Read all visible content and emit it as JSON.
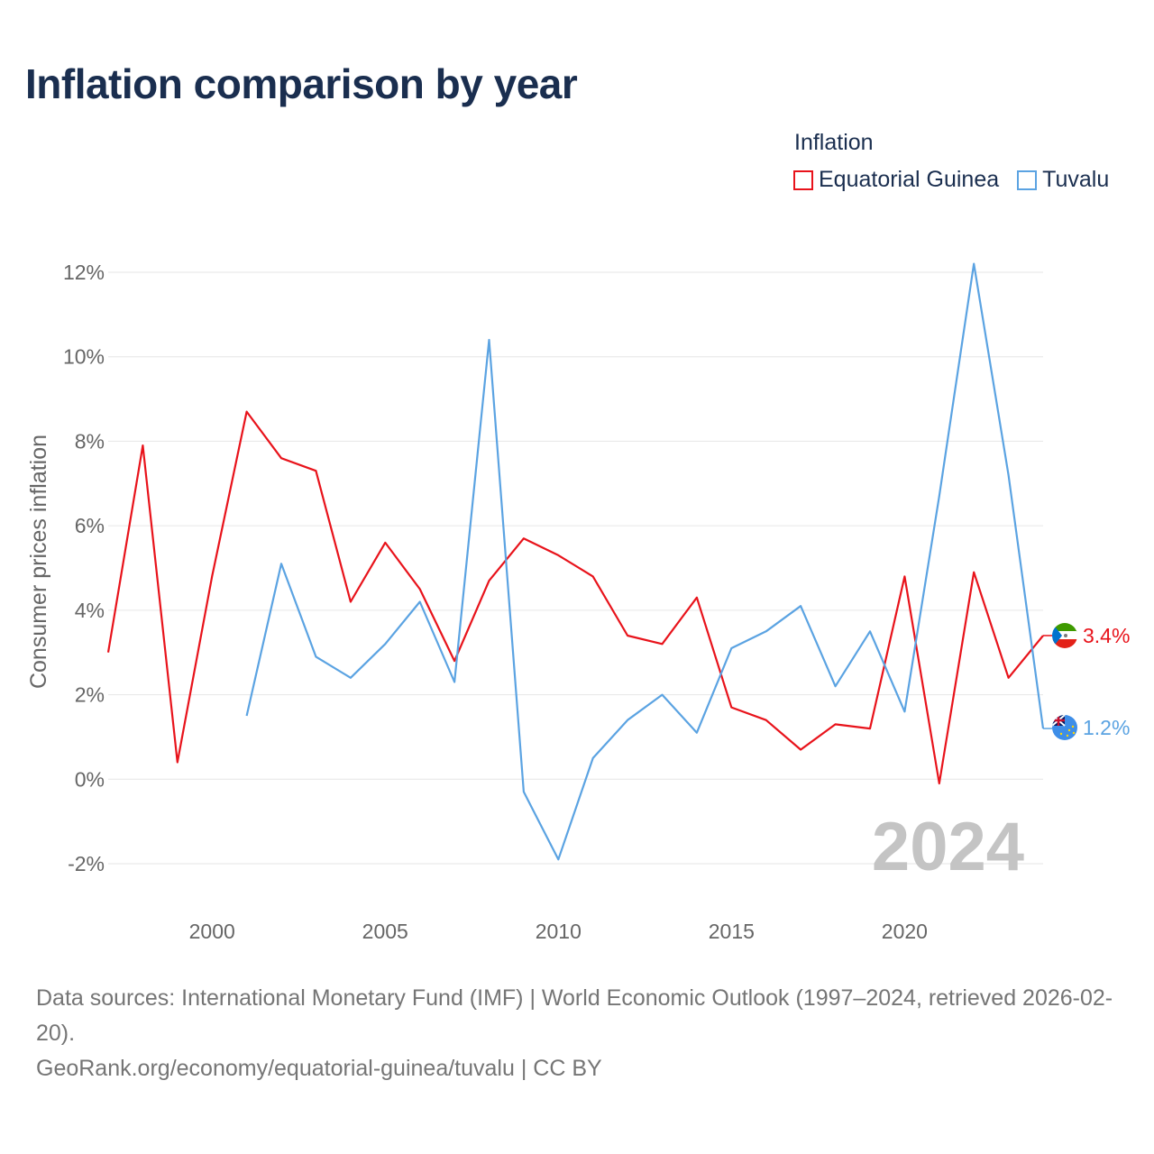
{
  "title": "Inflation comparison by year",
  "legend": {
    "title": "Inflation",
    "items": [
      {
        "label": "Equatorial Guinea",
        "color": "#e8131b"
      },
      {
        "label": "Tuvalu",
        "color": "#5ba3e2"
      }
    ]
  },
  "chart_data": {
    "type": "line",
    "title": "Inflation comparison by year",
    "xlabel": "",
    "ylabel": "Consumer prices inflation",
    "xlim": [
      1997,
      2024
    ],
    "ylim": [
      -3,
      12.6
    ],
    "yticks": [
      -2,
      0,
      2,
      4,
      6,
      8,
      10,
      12
    ],
    "ytick_labels": [
      "-2%",
      "0%",
      "2%",
      "4%",
      "6%",
      "8%",
      "10%",
      "12%"
    ],
    "xticks": [
      2000,
      2005,
      2010,
      2015,
      2020
    ],
    "xtick_labels": [
      "2000",
      "2005",
      "2010",
      "2015",
      "2020"
    ],
    "grid": true,
    "year_label": "2024",
    "series": [
      {
        "name": "Equatorial Guinea",
        "color": "#e8131b",
        "end_label": "3.4%",
        "x": [
          1997,
          1998,
          1999,
          2000,
          2001,
          2002,
          2003,
          2004,
          2005,
          2006,
          2007,
          2008,
          2009,
          2010,
          2011,
          2012,
          2013,
          2014,
          2015,
          2016,
          2017,
          2018,
          2019,
          2020,
          2021,
          2022,
          2023,
          2024
        ],
        "values": [
          3.0,
          7.9,
          0.4,
          4.8,
          8.7,
          7.6,
          7.3,
          4.2,
          5.6,
          4.5,
          2.8,
          4.7,
          5.7,
          5.3,
          4.8,
          3.4,
          3.2,
          4.3,
          1.7,
          1.4,
          0.7,
          1.3,
          1.2,
          4.8,
          -0.1,
          4.9,
          2.4,
          3.4
        ]
      },
      {
        "name": "Tuvalu",
        "color": "#5ba3e2",
        "end_label": "1.2%",
        "x": [
          2001,
          2002,
          2003,
          2004,
          2005,
          2006,
          2007,
          2008,
          2009,
          2010,
          2011,
          2012,
          2013,
          2014,
          2015,
          2016,
          2017,
          2018,
          2019,
          2020,
          2021,
          2022,
          2023,
          2024
        ],
        "values": [
          1.5,
          5.1,
          2.9,
          2.4,
          3.2,
          4.2,
          2.3,
          10.4,
          -0.3,
          -1.9,
          0.5,
          1.4,
          2.0,
          1.1,
          3.1,
          3.5,
          4.1,
          2.2,
          3.5,
          1.6,
          6.7,
          12.2,
          7.2,
          1.2
        ]
      }
    ]
  },
  "footer": {
    "sources": "Data sources: International Monetary Fund (IMF) | World Economic Outlook (1997–2024, retrieved 2026-02-20).",
    "credit": "GeoRank.org/economy/equatorial-guinea/tuvalu | CC BY"
  }
}
